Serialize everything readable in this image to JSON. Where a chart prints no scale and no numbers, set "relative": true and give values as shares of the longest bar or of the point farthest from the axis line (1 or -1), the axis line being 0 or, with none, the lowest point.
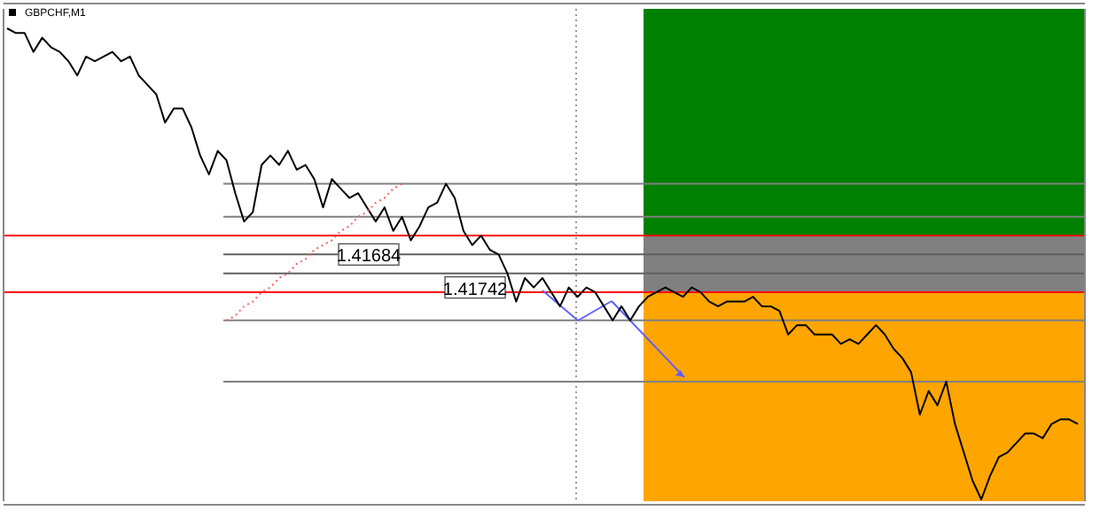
{
  "chart_data": {
    "type": "line",
    "title": "GBPCHF,M1",
    "relative": true,
    "categories": [
      null,
      null,
      null,
      null,
      null,
      null,
      null,
      null,
      null,
      null,
      null,
      null,
      null,
      null,
      null,
      null,
      null,
      null,
      null,
      null,
      null,
      null,
      null,
      null,
      null,
      null,
      null,
      null,
      null,
      null,
      null,
      null,
      null,
      null,
      null,
      null,
      null,
      null,
      null,
      null,
      null,
      null,
      null,
      null,
      null,
      null,
      null,
      null,
      null,
      null,
      null,
      null,
      null,
      null,
      null,
      null,
      null,
      null,
      null,
      null,
      null,
      null,
      null,
      null,
      null,
      null,
      null,
      null,
      null,
      null,
      null,
      null,
      null,
      null,
      null,
      null,
      null,
      null,
      null,
      null,
      null,
      null,
      null,
      null,
      null,
      null,
      null,
      null,
      null,
      null,
      null,
      null,
      null,
      null,
      null,
      null,
      null,
      null,
      null,
      null,
      null,
      null,
      null,
      null,
      null,
      null,
      null,
      null,
      null,
      null,
      null,
      null,
      null,
      null,
      null,
      null,
      null,
      null,
      null,
      null,
      null,
      null,
      null
    ],
    "series": [
      {
        "color": "#000000",
        "values": [
          1.0,
          0.99,
          0.99,
          0.95,
          0.98,
          0.96,
          0.95,
          0.93,
          0.9,
          0.94,
          0.93,
          0.94,
          0.95,
          0.93,
          0.94,
          0.9,
          0.88,
          0.86,
          0.8,
          0.83,
          0.83,
          0.79,
          0.73,
          0.69,
          0.74,
          0.72,
          0.65,
          0.59,
          0.61,
          0.71,
          0.73,
          0.71,
          0.74,
          0.7,
          0.71,
          0.68,
          0.62,
          0.68,
          0.66,
          0.64,
          0.65,
          0.62,
          0.59,
          0.62,
          0.57,
          0.6,
          0.55,
          0.58,
          0.62,
          0.63,
          0.67,
          0.64,
          0.57,
          0.54,
          0.56,
          0.53,
          0.52,
          0.48,
          0.42,
          0.47,
          0.45,
          0.47,
          0.44,
          0.41,
          0.45,
          0.43,
          0.45,
          0.44,
          0.41,
          0.38,
          0.41,
          0.38,
          0.41,
          0.43,
          0.44,
          0.45,
          0.44,
          0.43,
          0.45,
          0.44,
          0.42,
          0.41,
          0.42,
          0.42,
          0.42,
          0.43,
          0.41,
          0.41,
          0.4,
          0.35,
          0.37,
          0.37,
          0.35,
          0.35,
          0.35,
          0.33,
          0.34,
          0.33,
          0.35,
          0.37,
          0.35,
          0.32,
          0.3,
          0.27,
          0.18,
          0.23,
          0.2,
          0.25,
          0.16,
          0.1,
          0.04,
          0.0,
          0.05,
          0.09,
          0.1,
          0.12,
          0.14,
          0.14,
          0.13,
          0.16,
          0.17,
          0.17,
          0.16
        ]
      },
      {
        "type": "line",
        "color": "#ff6060",
        "line_style": "dotted",
        "values": [
          null,
          null,
          null,
          null,
          null,
          null,
          null,
          null,
          null,
          null,
          null,
          null,
          null,
          null,
          null,
          null,
          null,
          null,
          null,
          null,
          null,
          null,
          null,
          null,
          null,
          0.38,
          0.39,
          0.41,
          0.42,
          0.44,
          0.45,
          0.47,
          0.48,
          0.5,
          0.51,
          0.53,
          0.54,
          0.55,
          0.57,
          0.58,
          0.6,
          0.61,
          0.63,
          0.64,
          0.66,
          0.67,
          null,
          null,
          null,
          null,
          null,
          null,
          null,
          null,
          null,
          null,
          null,
          null,
          null,
          null,
          null,
          null,
          null,
          null,
          null,
          null,
          null,
          null,
          null,
          null,
          null,
          null,
          null,
          null,
          null,
          null,
          null,
          null,
          null,
          null,
          null,
          null,
          null,
          null,
          null,
          null,
          null,
          null,
          null,
          null,
          null,
          null,
          null,
          null,
          null,
          null,
          null,
          null,
          null,
          null,
          null,
          null,
          null,
          null,
          null,
          null,
          null,
          null,
          null,
          null,
          null,
          null,
          null,
          null,
          null,
          null,
          null,
          null,
          null,
          null,
          null,
          null,
          null
        ]
      }
    ],
    "ref_lines": [
      {
        "axis": "y",
        "value": 0.67,
        "color": "#808080"
      },
      {
        "axis": "y",
        "value": 0.6,
        "color": "#808080"
      },
      {
        "axis": "y",
        "value": 0.56,
        "color": "#ff0000"
      },
      {
        "axis": "y",
        "value": 0.52,
        "color": "#606060"
      },
      {
        "axis": "y",
        "value": 0.48,
        "color": "#606060"
      },
      {
        "axis": "y",
        "value": 0.44,
        "color": "#ff0000"
      },
      {
        "axis": "y",
        "value": 0.38,
        "color": "#808080"
      },
      {
        "axis": "y",
        "value": 0.25,
        "color": "#808080"
      }
    ],
    "bands": [
      {
        "axis": "y",
        "from": 0.56,
        "to": 1.0,
        "color": "#008000"
      },
      {
        "axis": "y",
        "from": 0.44,
        "to": 0.56,
        "color": "#808080"
      },
      {
        "axis": "y",
        "from": 0.0,
        "to": 0.44,
        "color": "#ffa500"
      }
    ],
    "annotations": [
      {
        "text": "1.41684",
        "y": 0.52
      },
      {
        "text": "1.41742",
        "y": 0.45
      }
    ]
  }
}
